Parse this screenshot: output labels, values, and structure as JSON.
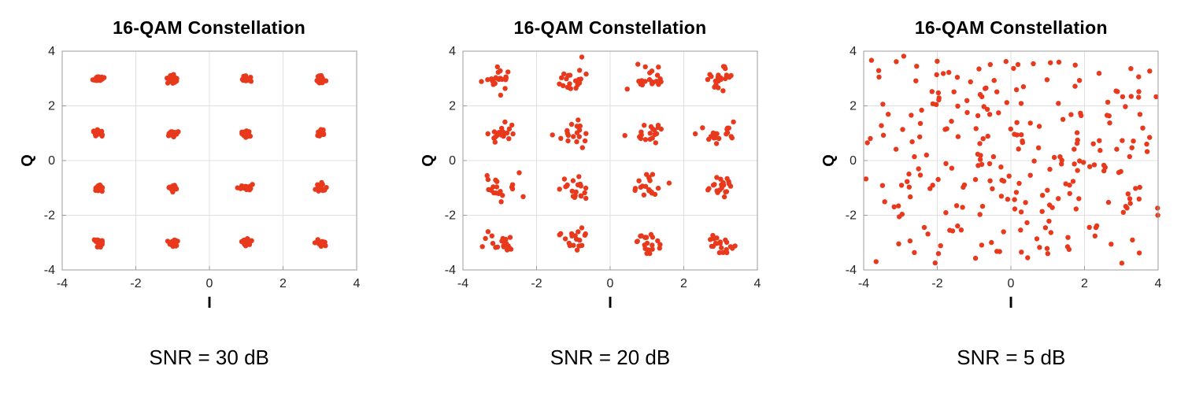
{
  "page": {
    "background": "#ffffff"
  },
  "chart_data": [
    {
      "type": "scatter",
      "title": "16-QAM Constellation",
      "xlabel": "I",
      "ylabel": "Q",
      "xlim": [
        -4,
        4
      ],
      "ylim": [
        -4,
        4
      ],
      "xticks": [
        -4,
        -2,
        0,
        2,
        4
      ],
      "yticks": [
        -4,
        -2,
        0,
        2,
        4
      ],
      "grid": true,
      "legend": "none",
      "marker_color": "#e8391d",
      "marker_radius": 3.2,
      "caption": "SNR = 30 dB",
      "snr_db": 30,
      "distribution": "gaussian_noise_around_16qam_symbols",
      "constellation_levels": [
        -3,
        -1,
        1,
        3
      ],
      "points_per_symbol": 20,
      "noise_sigma": 0.07,
      "seed": 101
    },
    {
      "type": "scatter",
      "title": "16-QAM Constellation",
      "xlabel": "I",
      "ylabel": "Q",
      "xlim": [
        -4,
        4
      ],
      "ylim": [
        -4,
        4
      ],
      "xticks": [
        -4,
        -2,
        0,
        2,
        4
      ],
      "yticks": [
        -4,
        -2,
        0,
        2,
        4
      ],
      "grid": true,
      "legend": "none",
      "marker_color": "#e8391d",
      "marker_radius": 3.2,
      "caption": "SNR = 20 dB",
      "snr_db": 20,
      "distribution": "gaussian_noise_around_16qam_symbols",
      "constellation_levels": [
        -3,
        -1,
        1,
        3
      ],
      "points_per_symbol": 20,
      "noise_sigma": 0.22,
      "seed": 202
    },
    {
      "type": "scatter",
      "title": "16-QAM Constellation",
      "xlabel": "I",
      "ylabel": "Q",
      "xlim": [
        -4,
        4
      ],
      "ylim": [
        -4,
        4
      ],
      "xticks": [
        -4,
        -2,
        0,
        2,
        4
      ],
      "yticks": [
        -4,
        -2,
        0,
        2,
        4
      ],
      "grid": true,
      "legend": "none",
      "marker_color": "#e8391d",
      "marker_radius": 3.2,
      "caption": "SNR = 5 dB",
      "snr_db": 5,
      "distribution": "gaussian_noise_around_16qam_symbols",
      "constellation_levels": [
        -3,
        -1,
        1,
        3
      ],
      "points_per_symbol": 20,
      "noise_sigma": 1.26,
      "seed": 303
    }
  ]
}
